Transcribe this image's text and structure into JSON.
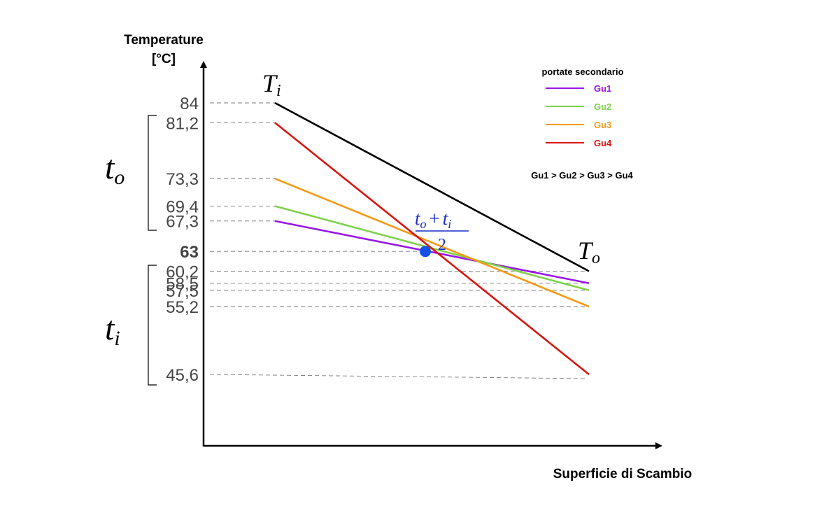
{
  "colors": {
    "hot_line": "#000000",
    "Gu1": "#9b15e8",
    "Gu2": "#7ed14a",
    "Gu3": "#f59a16",
    "Gu4": "#d9160f",
    "highlight": "#2f6ee6",
    "mean_point": "#1452e6",
    "grid": "#7a7a7a",
    "axis": "#000000"
  },
  "axes": {
    "y_title_line1": "Temperature",
    "y_title_line2": "[°C]",
    "x_title": "Superficie di Scambio"
  },
  "annotations": {
    "Ti": {
      "main": "T",
      "sub": "i"
    },
    "To": {
      "main": "T",
      "sub": "o"
    },
    "to_bracket": {
      "main": "t",
      "sub": "o"
    },
    "ti_bracket": {
      "main": "t",
      "sub": "i"
    },
    "mean": {
      "num_a_main": "t",
      "num_a_sub": "o",
      "plus": "+",
      "num_b_main": "t",
      "num_b_sub": "i",
      "den": "2"
    },
    "order_note": "Gu1 > Gu2 > Gu3 > Gu4"
  },
  "legend": {
    "title": "portate secondario",
    "items": [
      {
        "label": "Gu1",
        "color": "#9b15e8"
      },
      {
        "label": "Gu2",
        "color": "#7ed14a"
      },
      {
        "label": "Gu3",
        "color": "#f59a16"
      },
      {
        "label": "Gu4",
        "color": "#d9160f"
      }
    ]
  },
  "chart_data": {
    "type": "line",
    "xlabel": "Superficie di Scambio",
    "ylabel": "Temperature [°C]",
    "ylim": [
      35,
      92
    ],
    "x": [
      0,
      1
    ],
    "mean_temperature": 63,
    "series": [
      {
        "name": "Ti → To",
        "values": [
          84,
          60.2
        ],
        "color": "#000000"
      },
      {
        "name": "Gu1",
        "values": [
          67.3,
          58.5
        ],
        "color": "#9b15e8"
      },
      {
        "name": "Gu2",
        "values": [
          69.4,
          57.5
        ],
        "color": "#7ed14a"
      },
      {
        "name": "Gu3",
        "values": [
          73.3,
          55.2
        ],
        "color": "#f59a16"
      },
      {
        "name": "Gu4",
        "values": [
          81.2,
          45.6
        ],
        "color": "#d9160f"
      }
    ],
    "y_ticks": [
      {
        "label": "84",
        "value": 84
      },
      {
        "label": "81,2",
        "value": 81.2
      },
      {
        "label": "73,3",
        "value": 73.3
      },
      {
        "label": "69,4",
        "value": 69.4
      },
      {
        "label": "67,3",
        "value": 67.3
      },
      {
        "label": "63",
        "value": 63,
        "highlight": true
      },
      {
        "label": "60,2",
        "value": 60.2
      },
      {
        "label": "58,5",
        "value": 58.5
      },
      {
        "label": "57,5",
        "value": 57.5
      },
      {
        "label": "55,2",
        "value": 55.2
      },
      {
        "label": "45,6",
        "value": 45.6
      }
    ]
  }
}
